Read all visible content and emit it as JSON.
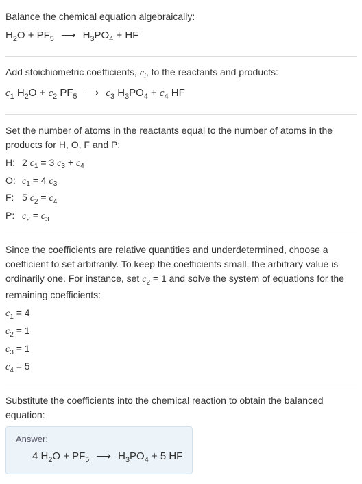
{
  "section1": {
    "intro": "Balance the chemical equation algebraically:",
    "eq_lhs1": "H",
    "eq_lhs1_sub": "2",
    "eq_lhs2": "O + PF",
    "eq_lhs2_sub": "5",
    "eq_rhs1": "H",
    "eq_rhs1_sub": "3",
    "eq_rhs2": "PO",
    "eq_rhs2_sub": "4",
    "eq_rhs3": " + HF",
    "arrow": "⟶"
  },
  "section2": {
    "intro_a": "Add stoichiometric coefficients, ",
    "intro_ci": "c",
    "intro_ci_sub": "i",
    "intro_b": ", to the reactants and products:",
    "c1": "c",
    "c1s": "1",
    "t1a": " H",
    "t1a_s": "2",
    "t1b": "O + ",
    "c2": "c",
    "c2s": "2",
    "t2a": " PF",
    "t2a_s": "5",
    "c3": "c",
    "c3s": "3",
    "t3a": " H",
    "t3a_s": "3",
    "t3b": "PO",
    "t3b_s": "4",
    "t3c": " + ",
    "c4": "c",
    "c4s": "4",
    "t4": " HF",
    "arrow": "⟶"
  },
  "section3": {
    "intro": "Set the number of atoms in the reactants equal to the number of atoms in the products for H, O, F and P:",
    "rows": {
      "H": {
        "label": "H:",
        "pre": "2 ",
        "c1": "c",
        "c1s": "1",
        "mid": " = 3 ",
        "c3": "c",
        "c3s": "3",
        "mid2": " + ",
        "c4": "c",
        "c4s": "4"
      },
      "O": {
        "label": "O:",
        "c1": "c",
        "c1s": "1",
        "mid": " = 4 ",
        "c3": "c",
        "c3s": "3"
      },
      "F": {
        "label": "F:",
        "pre": "5 ",
        "c2": "c",
        "c2s": "2",
        "mid": " = ",
        "c4": "c",
        "c4s": "4"
      },
      "P": {
        "label": "P:",
        "c2": "c",
        "c2s": "2",
        "mid": " = ",
        "c3": "c",
        "c3s": "3"
      }
    }
  },
  "section4": {
    "intro_a": "Since the coefficients are relative quantities and underdetermined, choose a coefficient to set arbitrarily. To keep the coefficients small, the arbitrary value is ordinarily one. For instance, set ",
    "cset": "c",
    "cset_s": "2",
    "intro_b": " = 1 and solve the system of equations for the remaining coefficients:",
    "c1": "c",
    "c1s": "1",
    "v1": " = 4",
    "c2": "c",
    "c2s": "2",
    "v2": " = 1",
    "c3": "c",
    "c3s": "3",
    "v3": " = 1",
    "c4": "c",
    "c4s": "4",
    "v4": " = 5"
  },
  "section5": {
    "intro": "Substitute the coefficients into the chemical reaction to obtain the balanced equation:"
  },
  "answer": {
    "label": "Answer:",
    "lhs1": "4 H",
    "lhs1_s": "2",
    "lhs2": "O + PF",
    "lhs2_s": "5",
    "arrow": "⟶",
    "rhs1": "H",
    "rhs1_s": "3",
    "rhs2": "PO",
    "rhs2_s": "4",
    "rhs3": " + 5 HF"
  },
  "colors": {
    "text": "#333333",
    "divider": "#dddddd",
    "answer_bg": "#edf4f9",
    "answer_border": "#d0e0ec"
  }
}
